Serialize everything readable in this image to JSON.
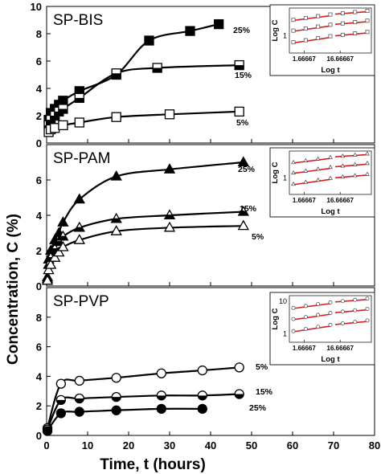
{
  "figure": {
    "ylabel": "Concentration, C (%)",
    "xlabel": "Time, t (hours)",
    "xticks": [
      "0",
      "10",
      "20",
      "30",
      "40",
      "50",
      "60",
      "70",
      "80"
    ]
  },
  "colors": {
    "line": "#000000",
    "fit": "#d62020",
    "inset_marker": "#444444"
  },
  "chart_data": [
    {
      "type": "line",
      "title": "SP-BIS",
      "xlim": [
        0,
        80
      ],
      "ylim": [
        0,
        10
      ],
      "yticks": [
        "0",
        "2",
        "4",
        "6",
        "8",
        "10"
      ],
      "marker": "square",
      "series": [
        {
          "name": "25%",
          "fill": "filled",
          "x": [
            0.5,
            1,
            2,
            3,
            4,
            8,
            17,
            25,
            35,
            42
          ],
          "y": [
            1.7,
            2.2,
            2.5,
            2.8,
            3.1,
            3.8,
            5.0,
            7.5,
            8.2,
            8.7
          ]
        },
        {
          "name": "15%",
          "fill": "half",
          "x": [
            0.5,
            1,
            2,
            3,
            4,
            8,
            17,
            27,
            47
          ],
          "y": [
            1.3,
            1.7,
            2.0,
            2.3,
            2.5,
            3.3,
            5.1,
            5.5,
            5.7
          ]
        },
        {
          "name": "5%",
          "fill": "open",
          "x": [
            0.5,
            1,
            2,
            4,
            8,
            17,
            30,
            47
          ],
          "y": [
            0.8,
            1.0,
            1.1,
            1.3,
            1.5,
            1.9,
            2.1,
            2.3
          ]
        }
      ],
      "inset": {
        "ylabel": "Log C",
        "xlabel": "Log t",
        "xticks": [
          "1.66667",
          "16.66667"
        ],
        "yticks": [
          "1"
        ]
      }
    },
    {
      "type": "line",
      "title": "SP-PAM",
      "xlim": [
        0,
        80
      ],
      "ylim": [
        0,
        8
      ],
      "yticks": [
        "0",
        "2",
        "4",
        "6"
      ],
      "marker": "triangle",
      "series": [
        {
          "name": "25%",
          "fill": "filled",
          "x": [
            0.2,
            0.5,
            1,
            2,
            3,
            4,
            8,
            17,
            30,
            48
          ],
          "y": [
            0.5,
            1.5,
            2.0,
            2.6,
            3.0,
            3.6,
            4.9,
            6.2,
            6.6,
            7.0
          ]
        },
        {
          "name": "15%",
          "fill": "half",
          "x": [
            0.2,
            0.5,
            1,
            2,
            3,
            4,
            8,
            17,
            30,
            48
          ],
          "y": [
            0.4,
            1.2,
            1.6,
            2.1,
            2.5,
            2.8,
            3.3,
            3.8,
            4.0,
            4.2
          ]
        },
        {
          "name": "5%",
          "fill": "open",
          "x": [
            0.2,
            0.5,
            1,
            2,
            3,
            4,
            8,
            17,
            30,
            48
          ],
          "y": [
            0.3,
            0.9,
            1.2,
            1.6,
            1.9,
            2.2,
            2.6,
            3.1,
            3.3,
            3.4
          ]
        }
      ],
      "inset": {
        "ylabel": "Log C",
        "xlabel": "Log t",
        "xticks": [
          "1.66667",
          "16.66667"
        ],
        "yticks": [
          "1"
        ]
      }
    },
    {
      "type": "line",
      "title": "SP-PVP",
      "xlim": [
        0,
        80
      ],
      "ylim": [
        0,
        10
      ],
      "yticks": [
        "0",
        "2",
        "4",
        "6",
        "8"
      ],
      "marker": "circle",
      "series": [
        {
          "name": "5%",
          "fill": "open",
          "x": [
            0.2,
            3.5,
            8,
            17,
            28,
            38,
            47
          ],
          "y": [
            0.5,
            3.5,
            3.7,
            3.9,
            4.2,
            4.4,
            4.6
          ]
        },
        {
          "name": "15%",
          "fill": "half",
          "x": [
            0.2,
            3.5,
            8,
            17,
            28,
            38,
            47
          ],
          "y": [
            0.4,
            2.4,
            2.5,
            2.6,
            2.7,
            2.7,
            2.8
          ]
        },
        {
          "name": "25%",
          "fill": "filled",
          "x": [
            0.2,
            3.5,
            8,
            17,
            28,
            38
          ],
          "y": [
            0.3,
            1.5,
            1.6,
            1.7,
            1.8,
            1.8
          ]
        }
      ],
      "inset": {
        "ylabel": "Log C",
        "xlabel": "Log t",
        "xticks": [
          "1.66667",
          "16.66667"
        ],
        "yticks": [
          "1",
          "10"
        ]
      }
    }
  ]
}
